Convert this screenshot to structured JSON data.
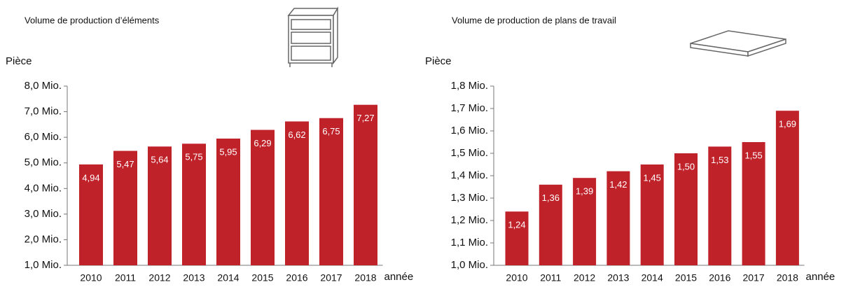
{
  "chart_data": [
    {
      "type": "bar",
      "title": "Volume de production d’éléments",
      "y_label": "Pièce",
      "x_label": "année",
      "categories": [
        "2010",
        "2011",
        "2012",
        "2013",
        "2014",
        "2015",
        "2016",
        "2017",
        "2018"
      ],
      "values": [
        4.94,
        5.47,
        5.64,
        5.75,
        5.95,
        6.29,
        6.62,
        6.75,
        7.27
      ],
      "value_labels": [
        "4,94",
        "5,47",
        "5,64",
        "5,75",
        "5,95",
        "6,29",
        "6,62",
        "6,75",
        "7,27"
      ],
      "color": "#c0222a",
      "ylim": [
        1,
        8
      ],
      "yticks": [
        {
          "value": 1,
          "label": "1,0 Mio."
        },
        {
          "value": 2,
          "label": "2,0 Mio."
        },
        {
          "value": 3,
          "label": "3,0 Mio."
        },
        {
          "value": 4,
          "label": "4,0 Mio."
        },
        {
          "value": 5,
          "label": "5,0 Mio."
        },
        {
          "value": 6,
          "label": "6,0 Mio."
        },
        {
          "value": 7,
          "label": "7,0 Mio."
        },
        {
          "value": 8,
          "label": "8,0 Mio."
        }
      ]
    },
    {
      "type": "bar",
      "title": "Volume de production de plans de travail",
      "y_label": "Pièce",
      "x_label": "année",
      "categories": [
        "2010",
        "2011",
        "2012",
        "2013",
        "2014",
        "2015",
        "2016",
        "2017",
        "2018"
      ],
      "values": [
        1.24,
        1.36,
        1.39,
        1.42,
        1.45,
        1.5,
        1.53,
        1.55,
        1.69
      ],
      "value_labels": [
        "1,24",
        "1,36",
        "1,39",
        "1,42",
        "1,45",
        "1,50",
        "1,53",
        "1,55",
        "1,69"
      ],
      "color": "#c0222a",
      "ylim": [
        1,
        1.8
      ],
      "yticks": [
        {
          "value": 1,
          "label": "1,0 Mio."
        },
        {
          "value": 1.1,
          "label": "1,1 Mio."
        },
        {
          "value": 1.2,
          "label": "1,2 Mio."
        },
        {
          "value": 1.3,
          "label": "1,3 Mio."
        },
        {
          "value": 1.4,
          "label": "1,4 Mio."
        },
        {
          "value": 1.5,
          "label": "1,5 Mio."
        },
        {
          "value": 1.6,
          "label": "1,6 Mio."
        },
        {
          "value": 1.7,
          "label": "1,7 Mio."
        },
        {
          "value": 1.8,
          "label": "1,8 Mio."
        }
      ]
    }
  ]
}
